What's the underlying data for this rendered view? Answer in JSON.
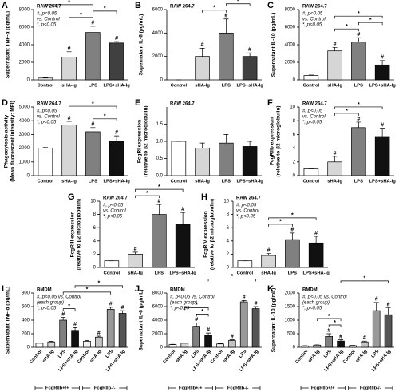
{
  "chart_data": [
    {
      "type": "bar",
      "panel": "A",
      "label": "RAW 264.7",
      "note": [
        "#, p<0.05",
        "vs. Control",
        "*, p<0.05"
      ],
      "ylabel": [
        "Supernatant TNF-α (pg/mL)"
      ],
      "categories": [
        "Control",
        "sHA-Ig",
        "LPS",
        "LPS+sHA-Ig"
      ],
      "values": [
        200,
        2600,
        5400,
        4200
      ],
      "errors": [
        50,
        600,
        700,
        150
      ],
      "colors": [
        "#ffffff",
        "#d6d6d6",
        "#808080",
        "#404040"
      ],
      "ylim": [
        0,
        8000
      ],
      "yticks": [
        0,
        2000,
        4000,
        6000,
        8000
      ],
      "bar_labels": [
        null,
        "#",
        "#",
        "#"
      ],
      "brackets": [
        {
          "between": [
            1,
            2
          ],
          "label": "*"
        },
        {
          "between": [
            2,
            3
          ],
          "label": "*"
        },
        {
          "between": [
            0,
            2
          ],
          "label": "*"
        }
      ]
    },
    {
      "type": "bar",
      "panel": "B",
      "label": "RAW 264.7",
      "note": [],
      "ylabel": [
        "Supernatant IL-6 (pg/mL)"
      ],
      "categories": [
        "Control",
        "sHA-Ig",
        "LPS",
        "LPS+sHA-Ig"
      ],
      "values": [
        0,
        2000,
        4000,
        2000
      ],
      "errors": [
        0,
        700,
        1200,
        300
      ],
      "colors": [
        "#ffffff",
        "#d6d6d6",
        "#808080",
        "#404040"
      ],
      "ylim": [
        0,
        6000
      ],
      "yticks": [
        0,
        2000,
        4000,
        6000
      ],
      "bar_labels": [
        null,
        "#",
        "#",
        "#"
      ],
      "brackets": [
        {
          "between": [
            1,
            2
          ],
          "label": "*"
        },
        {
          "between": [
            2,
            3
          ],
          "label": "*"
        }
      ]
    },
    {
      "type": "bar",
      "panel": "C",
      "label": "RAW 264.7",
      "note": [
        "#, p<0.05",
        "vs. Control",
        "*, p<0.05"
      ],
      "ylabel": [
        "Supernatant IL-10 (pg/mL)"
      ],
      "categories": [
        "Control",
        "sHA-Ig",
        "LPS",
        "LPS+sHA-Ig"
      ],
      "values": [
        500,
        3300,
        4300,
        1700
      ],
      "errors": [
        50,
        400,
        500,
        500
      ],
      "colors": [
        "#ffffff",
        "#d6d6d6",
        "#808080",
        "#111111"
      ],
      "ylim": [
        0,
        8000
      ],
      "yticks": [
        0,
        2000,
        4000,
        6000,
        8000
      ],
      "bar_labels": [
        null,
        "#",
        "#",
        "#"
      ],
      "brackets": [
        {
          "between": [
            1,
            2
          ],
          "label": "*"
        },
        {
          "between": [
            2,
            3
          ],
          "label": "*"
        },
        {
          "between": [
            1,
            3
          ],
          "label": "*"
        }
      ]
    },
    {
      "type": "bar",
      "panel": "D",
      "label": "RAW 264.7",
      "note": [
        "#, p<0.05",
        "vs. Control",
        "*, p<0.05"
      ],
      "ylabel": [
        "Phagocytosis activity",
        "(Mean fluorescent intensity: MFI)"
      ],
      "categories": [
        "Control",
        "sHA-Ig",
        "LPS",
        "LPS+sHA-Ig"
      ],
      "values": [
        2000,
        3700,
        3200,
        2500
      ],
      "errors": [
        50,
        250,
        300,
        400
      ],
      "colors": [
        "#ffffff",
        "#d6d6d6",
        "#808080",
        "#111111"
      ],
      "ylim": [
        0,
        5000
      ],
      "yticks": [
        0,
        1000,
        2000,
        3000,
        4000,
        5000
      ],
      "bar_labels": [
        null,
        "#",
        "#",
        "#"
      ],
      "brackets": [
        {
          "between": [
            2,
            3
          ],
          "label": "*"
        },
        {
          "between": [
            1,
            3
          ],
          "label": "*"
        }
      ]
    },
    {
      "type": "bar",
      "panel": "E",
      "label": "RAW 264.7",
      "note": [],
      "ylabel": [
        "FcgRI expression",
        "(relative to β2 microglobulin)"
      ],
      "categories": [
        "Control",
        "sHA-Ig",
        "LPS",
        "LPS+sHA-Ig"
      ],
      "values": [
        1.0,
        0.8,
        0.95,
        0.85
      ],
      "errors": [
        0,
        0.15,
        0.25,
        0.15
      ],
      "colors": [
        "#ffffff",
        "#d6d6d6",
        "#808080",
        "#111111"
      ],
      "ylim": [
        0,
        2
      ],
      "yticks": [
        {
          "value": 0,
          "label": "0.0"
        },
        0.5,
        {
          "value": 1,
          "label": "1.0"
        },
        1.5
      ],
      "bar_labels": [
        null,
        null,
        null,
        null
      ],
      "brackets": []
    },
    {
      "type": "bar",
      "panel": "F",
      "label": "RAW 264.7",
      "note": [
        "#, p<0.05",
        "vs. Control",
        "*, p<0.05"
      ],
      "ylabel": [
        "FcgRIIb expression",
        "(relative to β2 microglobulin)"
      ],
      "categories": [
        "Control",
        "sHA-Ig",
        "LPS",
        "LPS+sHA-Ig"
      ],
      "values": [
        1,
        2,
        7,
        5.7
      ],
      "errors": [
        0,
        0.8,
        0.8,
        1.2
      ],
      "colors": [
        "#ffffff",
        "#d6d6d6",
        "#808080",
        "#111111"
      ],
      "ylim": [
        0,
        10
      ],
      "yticks": [
        0,
        2,
        4,
        6,
        8,
        10
      ],
      "bar_labels": [
        null,
        "#",
        "#",
        "#"
      ],
      "brackets": [
        {
          "between": [
            1,
            2
          ],
          "label": "*"
        },
        {
          "between": [
            1,
            3
          ],
          "label": "*"
        }
      ]
    },
    {
      "type": "bar",
      "panel": "G",
      "label": "RAW 264.7",
      "note": [
        "#, p<0.05",
        "vs. Control",
        "*, p<0.05"
      ],
      "ylabel": [
        "FcgRIII expression",
        "(relative to β2 microglobulin)"
      ],
      "categories": [
        "Control",
        "sHA-Ig",
        "LPS",
        "LPS+sHA-Ig"
      ],
      "values": [
        1,
        2,
        8,
        6.5
      ],
      "errors": [
        0,
        0.3,
        1.5,
        1.8
      ],
      "colors": [
        "#ffffff",
        "#d6d6d6",
        "#808080",
        "#111111"
      ],
      "ylim": [
        0,
        10
      ],
      "yticks": [
        0,
        2,
        4,
        6,
        8,
        10
      ],
      "bar_labels": [
        null,
        "#",
        "#",
        "#"
      ],
      "brackets": [
        {
          "between": [
            1,
            2
          ],
          "label": "*"
        },
        {
          "between": [
            1,
            3
          ],
          "label": "*"
        }
      ]
    },
    {
      "type": "bar",
      "panel": "H",
      "label": "RAW 264.7",
      "note": [
        "#, p<0.05",
        "vs. Control",
        "*, p<0.05"
      ],
      "ylabel": [
        "FcgRIV expression",
        "(relative to β2 microglobulin)"
      ],
      "categories": [
        "Control",
        "sHA-Ig",
        "LPS",
        "LPS+sHA-Ig"
      ],
      "values": [
        1,
        1.8,
        4.2,
        3.7
      ],
      "errors": [
        0,
        0.3,
        1,
        1
      ],
      "colors": [
        "#ffffff",
        "#d6d6d6",
        "#808080",
        "#111111"
      ],
      "ylim": [
        0,
        10
      ],
      "yticks": [
        0,
        2,
        4,
        6,
        8,
        10
      ],
      "bar_labels": [
        null,
        "#",
        "#",
        "#"
      ],
      "brackets": [
        {
          "between": [
            1,
            2
          ],
          "label": "*"
        },
        {
          "between": [
            1,
            3
          ],
          "label": "*"
        }
      ]
    },
    {
      "type": "bar",
      "panel": "I",
      "label": "BMDM",
      "note": [
        "#, p<0.05 vs. Control",
        "(each group)",
        "*, p<0.05"
      ],
      "ylabel": [
        "Supernatant TNF-α (pg/mL)"
      ],
      "categories": [
        "Control",
        "sHA-Ig",
        "LPS",
        "LPS+sHA-Ig",
        "Control",
        "sHA-Ig",
        "LPS",
        "LPS+sHA-Ig"
      ],
      "groups": [
        "FcgRIIb+/+",
        "FcgRIIb-/-"
      ],
      "values": [
        60,
        80,
        400,
        250,
        90,
        150,
        560,
        500
      ],
      "errors": [
        5,
        10,
        40,
        40,
        10,
        15,
        30,
        40
      ],
      "colors": [
        "#ffffff",
        "#d6d6d6",
        "#808080",
        "#111111",
        "#f2f2f2",
        "#c4c4c4",
        "#999999",
        "#555555"
      ],
      "ylim": [
        0,
        800
      ],
      "yticks": [
        0,
        200,
        400,
        600,
        800
      ],
      "bar_labels": [
        null,
        null,
        "#",
        "#",
        null,
        "#",
        "#",
        "#"
      ],
      "brackets": [
        {
          "between": [
            2,
            3
          ],
          "label": "*"
        },
        {
          "between": [
            2,
            6
          ],
          "label": "*"
        },
        {
          "between": [
            3,
            7
          ],
          "label": "*"
        }
      ]
    },
    {
      "type": "bar",
      "panel": "J",
      "label": "BMDM",
      "note": [
        "#, p<0.05 vs. Control",
        "(each group)",
        "*, p<0.05"
      ],
      "ylabel": [
        "Supernatant IL-6 (pg/mL)"
      ],
      "categories": [
        "Control",
        "sHA-Ig",
        "LPS",
        "LPS+sHA-Ig",
        "Control",
        "sHA-Ig",
        "LPS",
        "LPS+sHA-Ig"
      ],
      "groups": [
        "FcgRIIb+/+",
        "FcgRIIb-/-"
      ],
      "values": [
        400,
        600,
        3100,
        1800,
        500,
        1000,
        6700,
        5700
      ],
      "errors": [
        50,
        50,
        500,
        300,
        50,
        100,
        200,
        300
      ],
      "colors": [
        "#ffffff",
        "#d6d6d6",
        "#808080",
        "#111111",
        "#f2f2f2",
        "#c4c4c4",
        "#999999",
        "#555555"
      ],
      "ylim": [
        0,
        8000
      ],
      "yticks": [
        0,
        2000,
        4000,
        6000,
        8000
      ],
      "bar_labels": [
        null,
        null,
        "#",
        "#",
        null,
        "#",
        "#",
        "#"
      ],
      "brackets": [
        {
          "between": [
            2,
            3
          ],
          "label": "*"
        },
        {
          "between": [
            1,
            3
          ],
          "label": "*"
        },
        {
          "between": [
            3,
            7
          ],
          "label": "*"
        }
      ]
    },
    {
      "type": "bar",
      "panel": "K",
      "label": "BMDM",
      "note": [
        "#, p<0.05 vs. Control",
        "(each group)",
        "*, p<0.05"
      ],
      "ylabel": [
        "Supernatant IL-10 (pg/mL)"
      ],
      "categories": [
        "Control",
        "sHA-Ig",
        "LPS",
        "LPS+sHA-Ig",
        "Control",
        "sHA-Ig",
        "LPS",
        "LPS+sHA-Ig"
      ],
      "groups": [
        "FcgRIIb+/+",
        "FcgRIIb-/-"
      ],
      "values": [
        50,
        80,
        400,
        230,
        60,
        200,
        1350,
        1200
      ],
      "errors": [
        10,
        10,
        100,
        50,
        10,
        30,
        300,
        250
      ],
      "colors": [
        "#ffffff",
        "#d6d6d6",
        "#808080",
        "#111111",
        "#f2f2f2",
        "#c4c4c4",
        "#999999",
        "#555555"
      ],
      "ylim": [
        0,
        2000
      ],
      "yticks": [
        0,
        500,
        1000,
        1500,
        2000
      ],
      "bar_labels": [
        null,
        null,
        "#",
        "#",
        null,
        "#",
        "#",
        "#"
      ],
      "brackets": [
        {
          "between": [
            2,
            3
          ],
          "label": "*"
        },
        {
          "between": [
            1,
            3
          ],
          "label": "*"
        },
        {
          "between": [
            3,
            7
          ],
          "label": "*"
        }
      ]
    }
  ]
}
